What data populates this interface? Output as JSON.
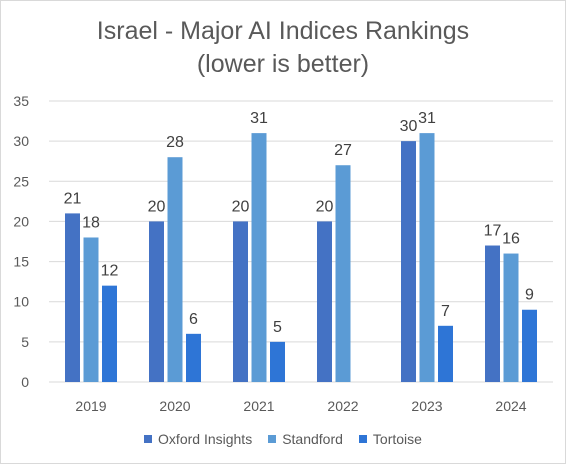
{
  "chart_data": {
    "type": "bar",
    "title_lines": [
      "Israel - Major AI Indices Rankings",
      "(lower is better)"
    ],
    "categories": [
      "2019",
      "2020",
      "2021",
      "2022",
      "2023",
      "2024"
    ],
    "series": [
      {
        "name": "Oxford Insights",
        "color": "#4472c4",
        "values": [
          21,
          20,
          20,
          20,
          30,
          17
        ]
      },
      {
        "name": "Standford",
        "color": "#5b9bd5",
        "values": [
          18,
          28,
          31,
          27,
          31,
          16
        ]
      },
      {
        "name": "Tortoise",
        "color": "#2e75d6",
        "values": [
          12,
          6,
          5,
          null,
          7,
          9
        ]
      }
    ],
    "ylim": [
      0,
      35
    ],
    "yticks": [
      0,
      5,
      10,
      15,
      20,
      25,
      30,
      35
    ],
    "grid": true,
    "legend_position": "bottom",
    "colors": {
      "grid": "#d9d9d9",
      "text": "#595959"
    }
  }
}
